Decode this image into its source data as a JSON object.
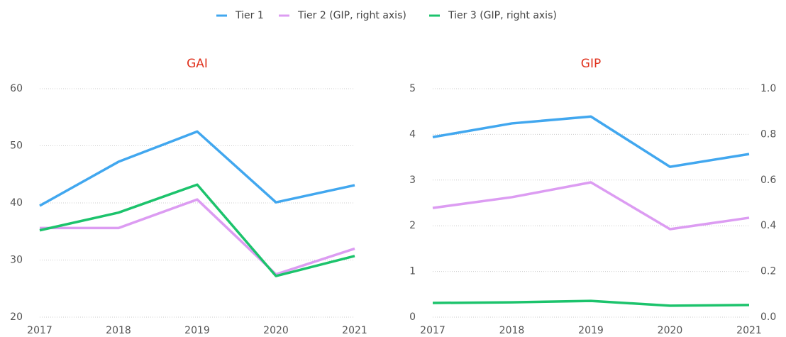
{
  "chart_data": [
    {
      "type": "line",
      "title": "GAI",
      "categories": [
        "2017",
        "2018",
        "2019",
        "2020",
        "2021"
      ],
      "series": [
        {
          "color": "#41a7ef",
          "values": [
            39.5,
            47.2,
            52.5,
            40.1,
            43.1
          ]
        },
        {
          "color": "#dc9cf2",
          "values": [
            35.6,
            35.6,
            40.6,
            27.5,
            32
          ]
        },
        {
          "color": "#1cc36c",
          "values": [
            35.2,
            38.3,
            43.2,
            27.2,
            30.7
          ]
        }
      ],
      "ylim": [
        20,
        60
      ],
      "yticks": [
        20,
        30,
        40,
        50,
        60
      ],
      "grid": true
    },
    {
      "type": "line",
      "title": "GIP",
      "categories": [
        "2017",
        "2018",
        "2019",
        "2020",
        "2021"
      ],
      "series": [
        {
          "name": "Tier 1",
          "color": "#41a7ef",
          "values": [
            3.94,
            4.24,
            4.39,
            3.29,
            3.57
          ]
        },
        {
          "name": "Tier 2 (GIP, right axis)",
          "color": "#dc9cf2",
          "axis": "y2",
          "values": [
            0.478,
            0.525,
            0.59,
            0.385,
            0.435
          ]
        },
        {
          "name": "Tier 3 (GIP, right axis)",
          "color": "#1cc36c",
          "axis": "y2",
          "values": [
            0.062,
            0.065,
            0.071,
            0.05,
            0.053
          ]
        }
      ],
      "ylim": [
        0,
        5
      ],
      "yticks": [
        0,
        1,
        2,
        3,
        4,
        5
      ],
      "y2lim": [
        0,
        1
      ],
      "y2ticks": [
        {
          "value": 0,
          "label": "0.0"
        },
        0.2,
        0.4,
        0.6,
        0.8,
        {
          "value": 1,
          "label": "1.0"
        }
      ],
      "grid": true,
      "legend": "top"
    }
  ]
}
